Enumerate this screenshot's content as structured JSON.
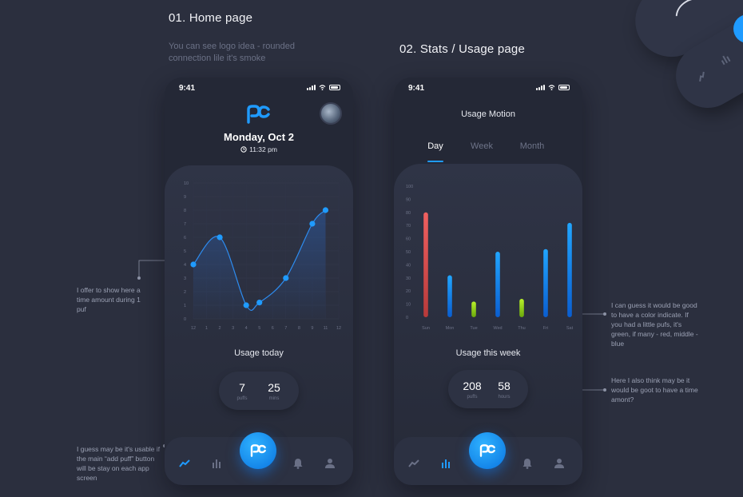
{
  "headings": {
    "home": "01. Home page",
    "stats": "02. Stats / Usage page",
    "home_sub": "You can see logo idea - rounded connection lile it's smoke"
  },
  "notes": {
    "time_per_puff": "I offer to show here a time amount during 1 puf",
    "add_puff": "I guess may be it's usable if the main “add puff” button will be stay on each app screen",
    "color_indicate": "I can guess it would be good to have a color indicate. If you had a little pufs, it's green, if many - red, middle - blue",
    "time_amount": "Here I also think may be it would be goot to have a time amont?"
  },
  "home": {
    "time": "9:41",
    "logo": "pc",
    "date": "Monday, Oct 2",
    "clock": "11:32 pm",
    "usage_title": "Usage today",
    "puffs_value": "7",
    "puffs_label": "puffs",
    "mins_value": "25",
    "mins_label": "mins"
  },
  "stats": {
    "time": "9:41",
    "title": "Usage Motion",
    "tabs": [
      "Day",
      "Week",
      "Month"
    ],
    "active_tab": "Day",
    "usage_title": "Usage this week",
    "puffs_value": "208",
    "puffs_label": "puffs",
    "hours_value": "58",
    "hours_label": "hours"
  },
  "icons": {
    "trend": "trend-icon",
    "bars": "bar-chart-icon",
    "bell": "bell-icon",
    "user": "user-icon",
    "clock": "clock-icon",
    "logo": "pc-logo"
  },
  "colors": {
    "accent": "#1f9bff",
    "red": "#e05252",
    "green": "#9ad61c",
    "blue": "#1e8df5"
  },
  "chart_data": [
    {
      "type": "line",
      "x": [
        "12",
        "1",
        "2",
        "3",
        "4",
        "5",
        "6",
        "7",
        "8",
        "9",
        "11",
        "12"
      ],
      "points": [
        {
          "x": "12",
          "y": 4
        },
        {
          "x": "2",
          "y": 6
        },
        {
          "x": "4",
          "y": 1
        },
        {
          "x": "5",
          "y": 1.2
        },
        {
          "x": "7",
          "y": 3
        },
        {
          "x": "9",
          "y": 7
        },
        {
          "x": "11",
          "y": 8
        }
      ],
      "ylim": [
        0,
        10
      ],
      "yticks": [
        "0",
        "1",
        "2",
        "3",
        "4",
        "5",
        "6",
        "7",
        "8",
        "9",
        "10"
      ]
    },
    {
      "type": "bar",
      "categories": [
        "Sun",
        "Mon",
        "Tue",
        "Wed",
        "Thu",
        "Fri",
        "Sat"
      ],
      "values": [
        80,
        32,
        12,
        50,
        14,
        52,
        72
      ],
      "bar_colors": [
        "red",
        "blue",
        "green",
        "blue",
        "green",
        "blue",
        "blue"
      ],
      "ylim": [
        0,
        100
      ],
      "yticks": [
        "0",
        "10",
        "20",
        "30",
        "40",
        "50",
        "60",
        "70",
        "80",
        "90",
        "100"
      ]
    }
  ]
}
